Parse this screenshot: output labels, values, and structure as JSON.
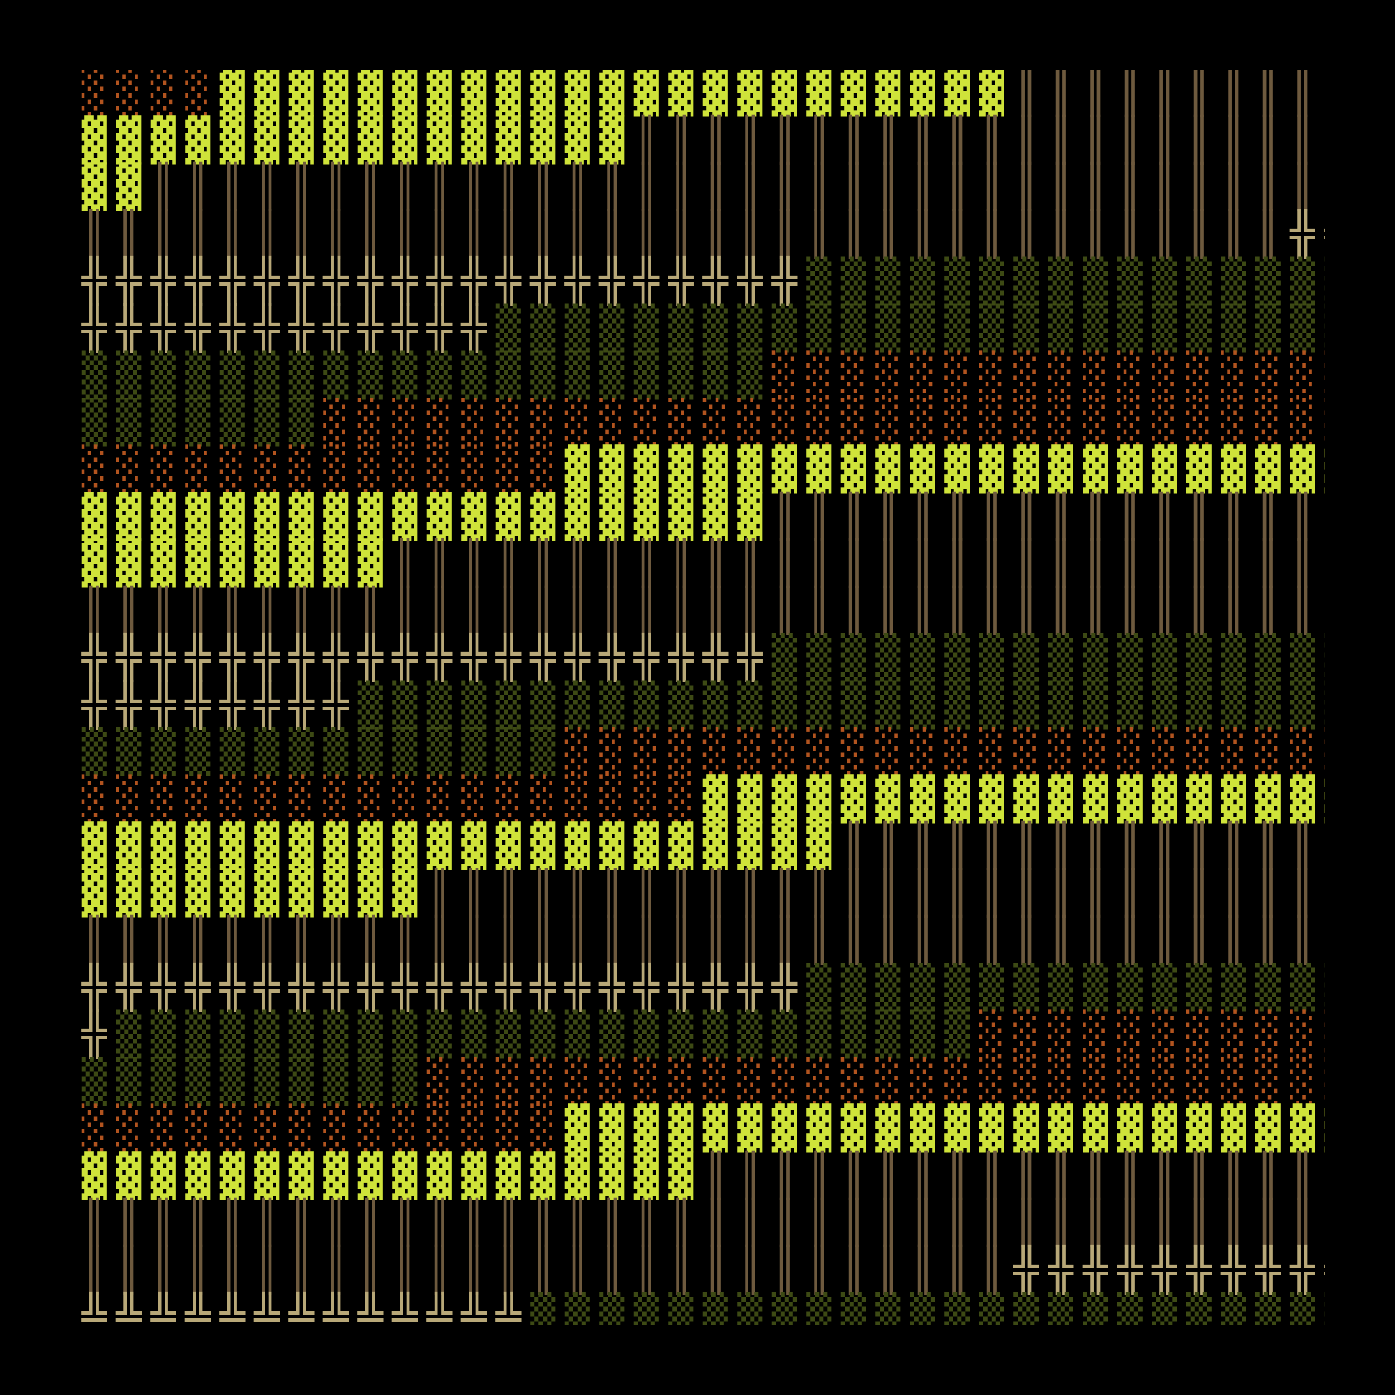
{
  "palette": {
    "background": "#000000",
    "bright_block": "#cfe33a",
    "dim_green_block": "#3d4a14",
    "rust_block": "#5c2f10",
    "rust_dots": "#b2541f",
    "bar_stroke": "#6e5a3e",
    "cross_glyph": "#b8a878"
  },
  "tile_types": {
    "S": {
      "name": "solid-lime-block",
      "glyph": "▓",
      "color_key": "bright_block"
    },
    "G": {
      "name": "dotted-olive-block",
      "glyph": "▒",
      "color_key": "dim_green_block"
    },
    "R": {
      "name": "dotted-rust-block",
      "glyph": "░",
      "color_key": "rust_dots"
    },
    "B": {
      "name": "vertical-bars",
      "glyph": "║",
      "color_key": "bar_stroke"
    },
    "C": {
      "name": "double-cross",
      "glyph": "╬",
      "color_key": "cross_glyph"
    },
    "T": {
      "name": "double-t-up",
      "glyph": "╩",
      "color_key": "cross_glyph"
    }
  },
  "rows": [
    "RRRRSSSSSSSSSSSSSSSSSSSSSSSBBBBBBBBBBBBBBBBBBBBBBBBBBBBBBBBBBC",
    "SSSSSSSSSSSSSSSSBBBBBBBBBBBBBBBBBBBBBBBBBBBBBBBBBBBBBBCCCCCCCC",
    "SSBBBBBBBBBBBBBBBBBBBBBBBBBBBBBBBBBBBBBBCCCCCCCCCCCGGGGGGGGGGGG",
    "BBBBBBBBBBBBBBBBBBBBBBBBBBBBBBBBBBBCCCCCCCCCCCCCGGGGGGGGGGGGGG",
    "CCCCCCCCCCCCCCCCCCCCCGGGGGGGGGGGGGGGGGGGGGGGGGGGGRRRRRRRRRRRRR",
    "CCCCCCCCCCCCGGGGGGGGGGGGGGGGGGGGGGGGGGGGGRRRRRRRRRRRRRRRRRRRRR",
    "GGGGGGGGGGGGGGGGGGGGRRRRRRRRRRRRRRRRRRRRRRRRRRRRRRRRSSSSSSSSSS",
    "GGGGGGGRRRRRRRRRRRRRRRRRRRRRRRRRRRRRRRRRRRRRRRSSSSSSSSSSSSSSSS",
    "RRRRRRRRRRRRRRSSSSSSSSSSSSSSSSSSSSSSSSSSBBBBBBBBBBBBBBBBBBBBBB",
    "SSSSSSSSSSSSSSSSSSSSBBBBBBBBBBBBBBBBBBBBBBBBBBBBBBBBBBBBCCCCCC",
    "SSSSSSSSSBBBBBBBBBBBBBBBBBBBBBBBBBBBBBBBBBBBBCCCCCCCCCCCCCCCCC",
    "BBBBBBBBBBBBBBBBBBBBBBBBBBBBBBBBBBBBBBBBCCCCCCCCCCCCCGGGGGGGGG",
    "CCCCCCCCCCCCCCCCCCCCGGGGGGGGGGGGGGGGGGGGGGGGGGGGRRRRRRRRRRRRRRR",
    "CCCCCCCCGGGGGGGGGGGGGGGGGGGGGGGGGGGGGGRRRRRRRRRRRRRRRRRRRRSSSS",
    "GGGGGGGGGGGGGGRRRRRRRRRRRRRRRRRRRRRRRRRRRRRRSSSSSSSSSSSSSSSSSS",
    "RRRRRRRRRRRRRRRRRRSSSSSSSSSSSSSSSSSSSSSSSSSSSSSBBBBBBBBBBBBBBB",
    "SSSSSSSSSSSSSSSSSSSSSSBBBBBBBBBBBBBBBBBBBBBBBBBBBBBBBBBBBCCCCCC",
    "SSSSSSSSSSBBBBBBBBBBBBBBBBBBBBBBBBBBBBBBBBBBBBBBBCCCCCCCCCCCCC",
    "BBBBBBBBBBBBBBBBBBBBBBBBBBBBBBBBBBBBBBBBCCCCCCCCCCCCCGGGGGGGGG",
    "CCCCCCCCCCCCCCCCCCCCCGGGGGGGGGGGGGGGGGGGGGGGGGGGRRRRRRRRRRRRRR",
    "CGGGGGGGGGGGGGGGGGGGGGGGGGRRRRRRRRRRRRRRRRRRRRRRRRRRRRRRRRSSSS",
    "GGGGGGGGGGRRRRRRRRRRRRRRRRRRRRRRRRRRRRRRRRRRRRSSSSSSSSSSSSSSSS",
    "RRRRRRRRRRRRRRSSSSSSSSSSSSSSSSSSSSSSSSSSBBBBBBBBBBBBBBBBBBBBBB",
    "SSSSSSSSSSSSSSSSSSBBBBBBBBBBBBBBBBBBBBBBBBBBBBBBBBBBBBBBCCCCCC",
    "BBBBBBBBBBBBBBBBBBBBBBBBBBBBBBBBBBBBBBBBBBBBBBBBBCCCCCCCCCCGGGG",
    "BBBBBBBBBBBBBBBBBBBBBBBBBBBCCCCCCCCCCCCCCCCGGGGGGGGGGGGGGGGGGG",
    "TTTTTTTTTTTTTGGGGGGGGGGGGGGGGGGGGGGGGGGGGGGRRRRRRRRRRRRRRRRRRR"
  ]
}
